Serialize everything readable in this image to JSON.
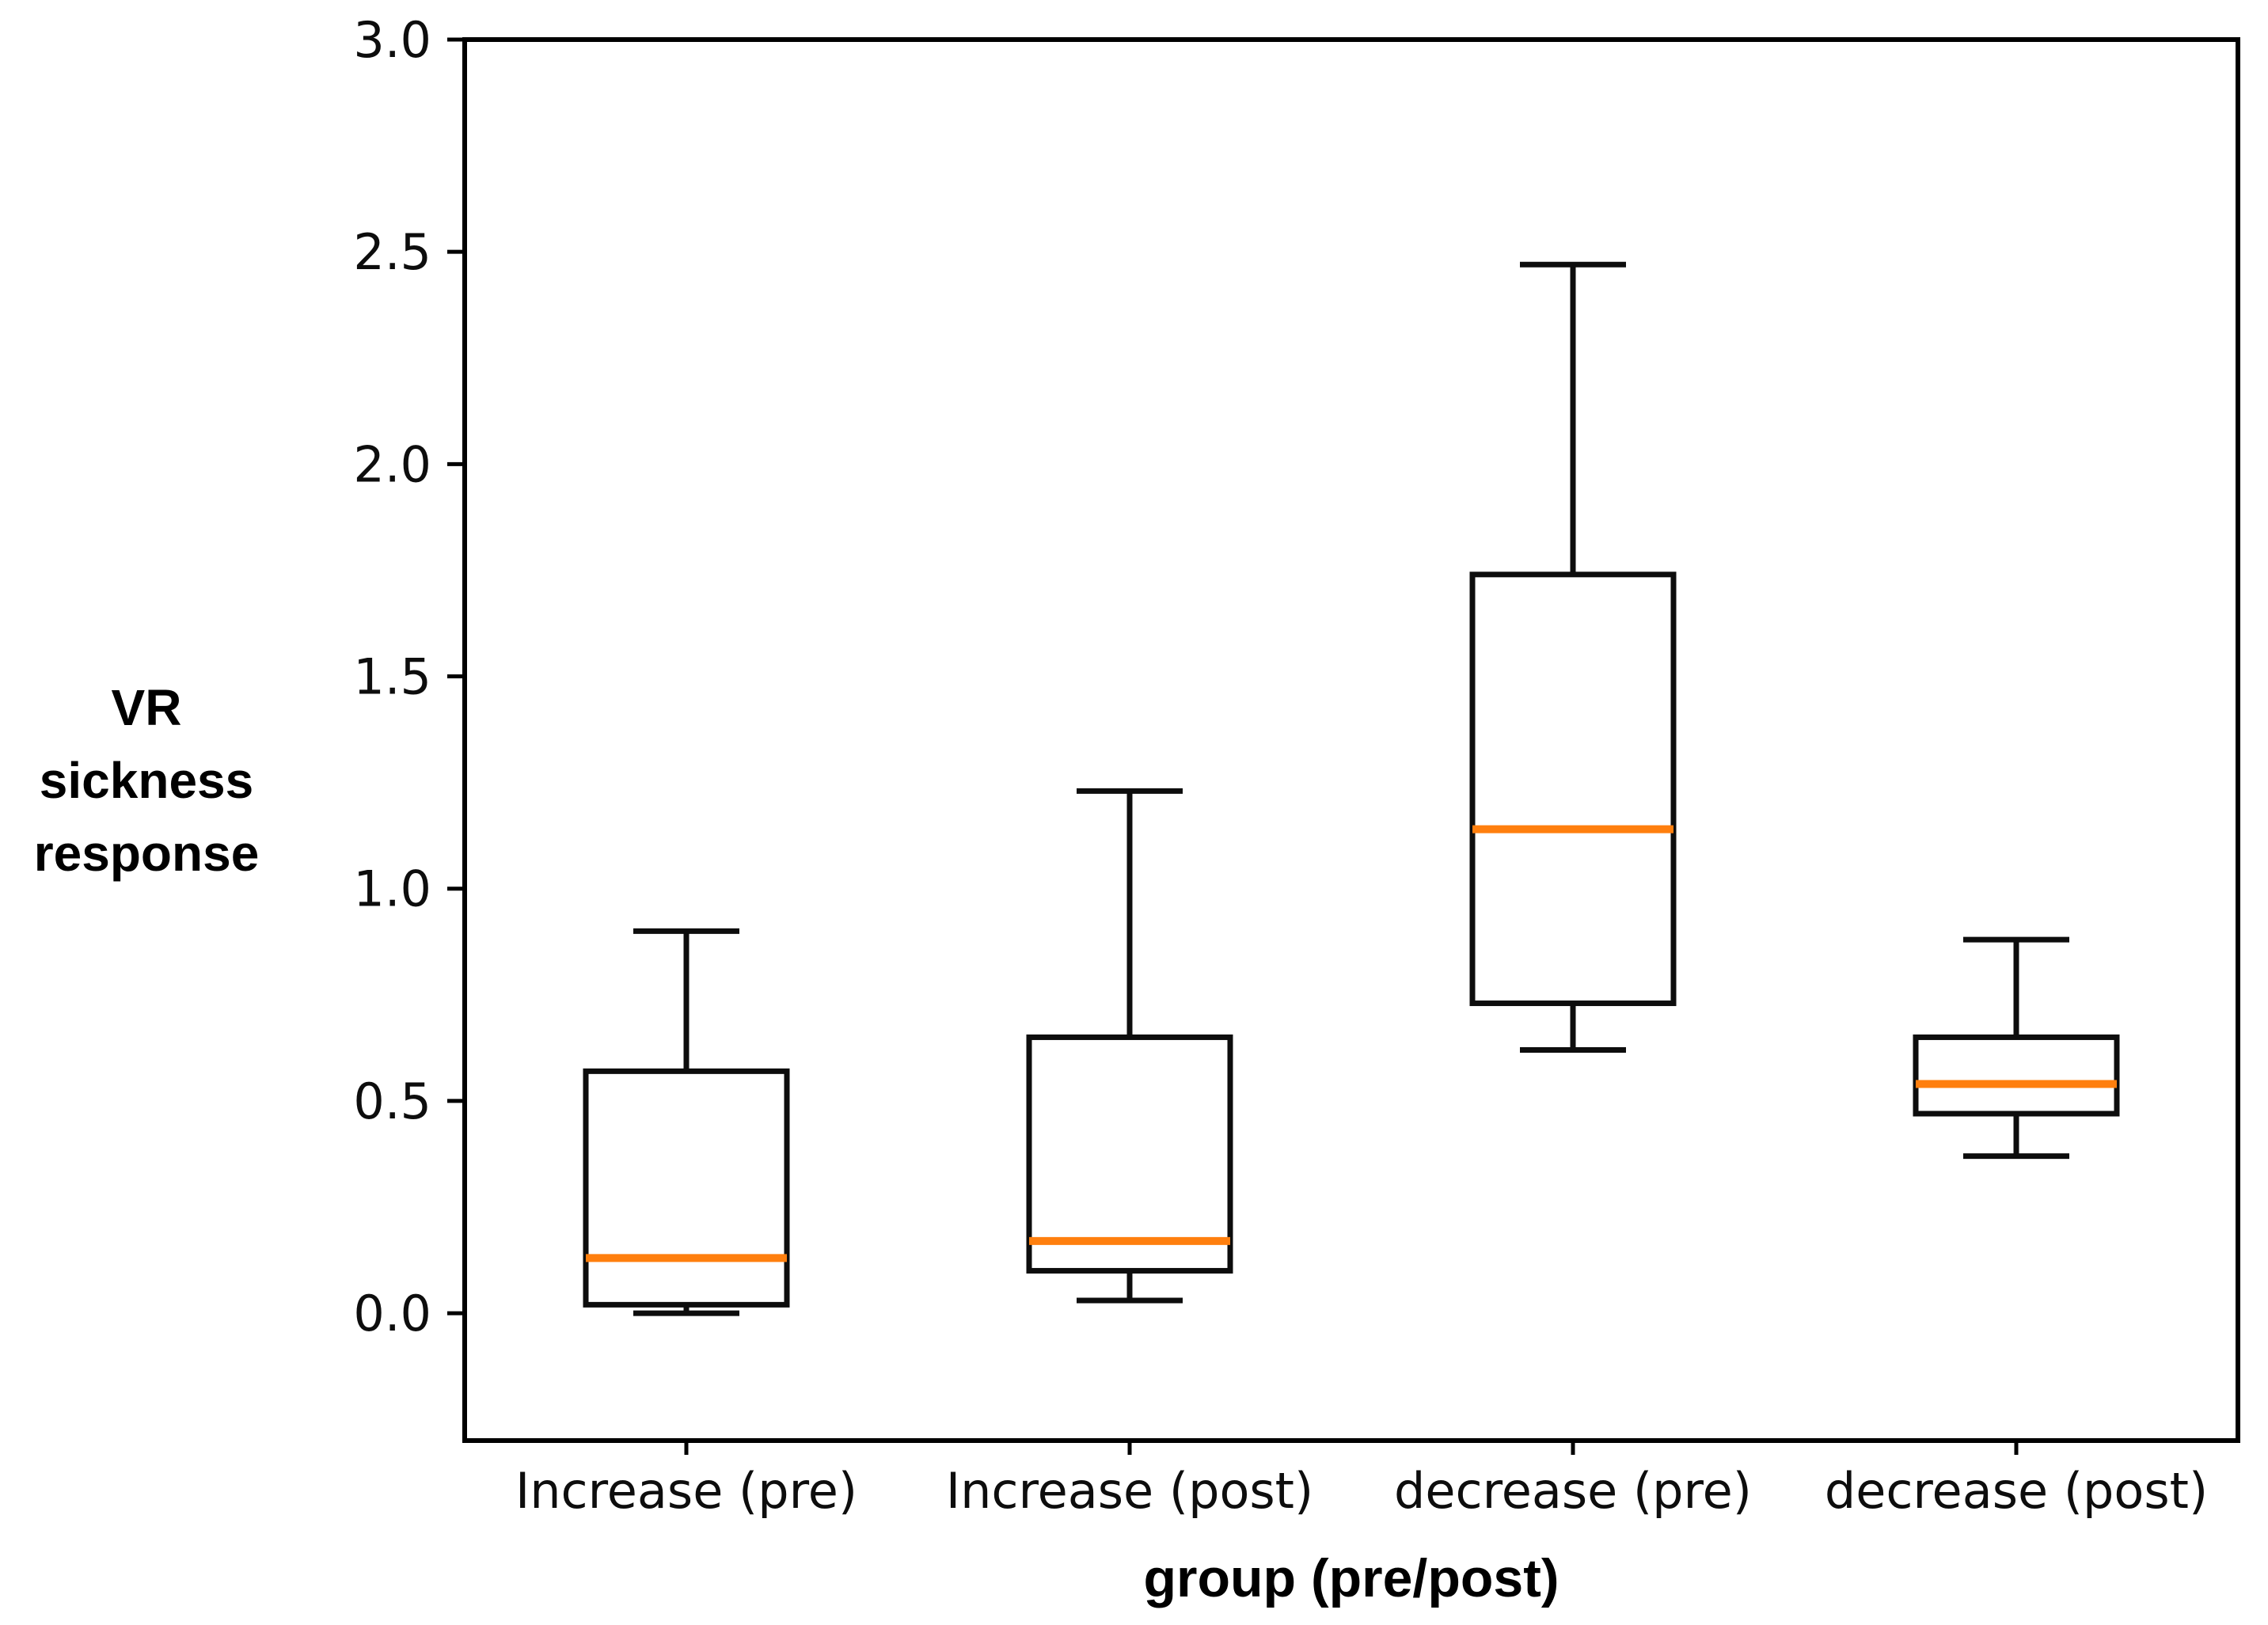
{
  "figure": {
    "background_color": "#ffffff",
    "axis_color": "#000000"
  },
  "chart_data": {
    "type": "box",
    "title": "",
    "xlabel": "group (pre/post)",
    "ylabel": "VR sickness response",
    "ylabel_lines": [
      "VR sickness",
      "response"
    ],
    "ylim": [
      -0.3,
      3.0
    ],
    "yticks": [
      0.0,
      0.5,
      1.0,
      1.5,
      2.0,
      2.5,
      3.0
    ],
    "ytick_labels": [
      "0.0",
      "0.5",
      "1.0",
      "1.5",
      "2.0",
      "2.5",
      "3.0"
    ],
    "categories": [
      "Increase (pre)",
      "Increase (post)",
      "decrease (pre)",
      "decrease (post)"
    ],
    "grid": false,
    "legend": "none",
    "box_color": "#000000",
    "median_color": "#ff7f0e",
    "series": [
      {
        "label": "Increase (pre)",
        "whislo": 0.0,
        "q1": 0.02,
        "med": 0.13,
        "q3": 0.57,
        "whishi": 0.9
      },
      {
        "label": "Increase (post)",
        "whislo": 0.03,
        "q1": 0.1,
        "med": 0.17,
        "q3": 0.65,
        "whishi": 1.23
      },
      {
        "label": "decrease (pre)",
        "whislo": 0.62,
        "q1": 0.73,
        "med": 1.14,
        "q3": 1.74,
        "whishi": 2.47
      },
      {
        "label": "decrease (post)",
        "whislo": 0.37,
        "q1": 0.47,
        "med": 0.54,
        "q3": 0.65,
        "whishi": 0.88
      }
    ]
  }
}
